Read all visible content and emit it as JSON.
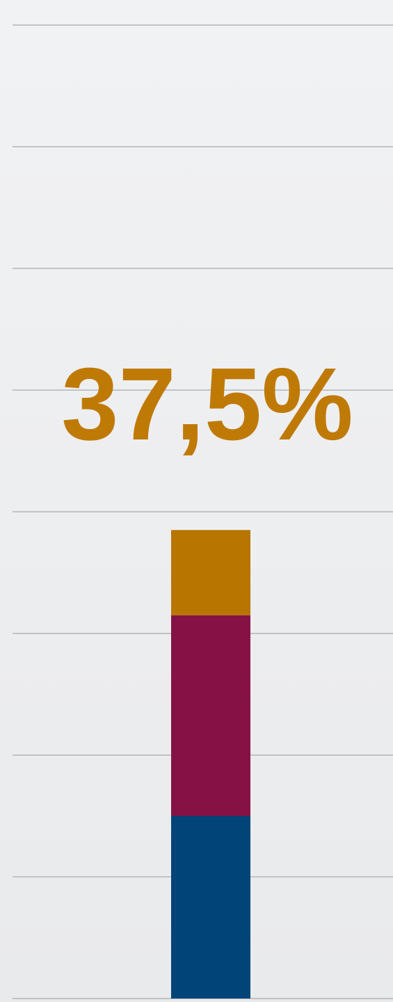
{
  "chart_data": {
    "type": "stacked-bar",
    "annotation": "37,5%",
    "annotation_color": "#bf7a06",
    "categories": [
      null
    ],
    "series": [
      {
        "color": "#004478",
        "values": [
          1.5
        ]
      },
      {
        "color": "#861245",
        "values": [
          1.65
        ]
      },
      {
        "color": "#b87500",
        "values": [
          0.7
        ]
      }
    ],
    "ylim": [
      0,
      8
    ],
    "yticks": [
      0,
      1,
      2,
      3,
      4,
      5,
      6,
      7,
      8
    ],
    "grid": true
  }
}
